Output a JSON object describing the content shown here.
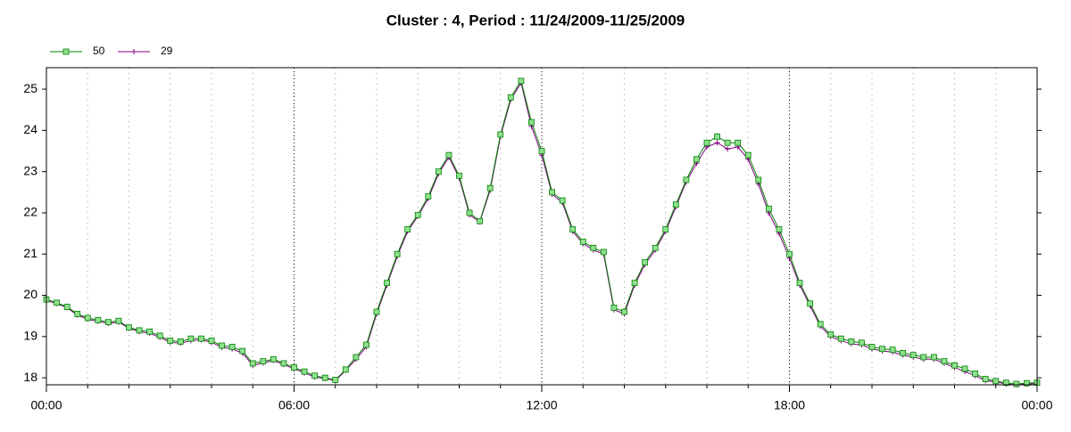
{
  "chart_data": {
    "type": "line",
    "title": "Cluster : 4, Period : 11/24/2009-11/25/2009",
    "x": [
      0,
      0.25,
      0.5,
      0.75,
      1,
      1.25,
      1.5,
      1.75,
      2,
      2.25,
      2.5,
      2.75,
      3,
      3.25,
      3.5,
      3.75,
      4,
      4.25,
      4.5,
      4.75,
      5,
      5.25,
      5.5,
      5.75,
      6,
      6.25,
      6.5,
      6.75,
      7,
      7.25,
      7.5,
      7.75,
      8,
      8.25,
      8.5,
      8.75,
      9,
      9.25,
      9.5,
      9.75,
      10,
      10.25,
      10.5,
      10.75,
      11,
      11.25,
      11.5,
      11.75,
      12,
      12.25,
      12.5,
      12.75,
      13,
      13.25,
      13.5,
      13.75,
      14,
      14.25,
      14.5,
      14.75,
      15,
      15.25,
      15.5,
      15.75,
      16,
      16.25,
      16.5,
      16.75,
      17,
      17.25,
      17.5,
      17.75,
      18,
      18.25,
      18.5,
      18.75,
      19,
      19.25,
      19.5,
      19.75,
      20,
      20.25,
      20.5,
      20.75,
      21,
      21.25,
      21.5,
      21.75,
      22,
      22.25,
      22.5,
      22.75,
      23,
      23.25,
      23.5,
      23.75,
      24
    ],
    "series": [
      {
        "name": "50",
        "color": "#008000",
        "marker_fill": "#90e090",
        "marker": "square",
        "values": [
          19.9,
          19.82,
          19.72,
          19.55,
          19.45,
          19.4,
          19.35,
          19.38,
          19.22,
          19.15,
          19.12,
          19.02,
          18.9,
          18.88,
          18.95,
          18.95,
          18.9,
          18.78,
          18.75,
          18.65,
          18.35,
          18.4,
          18.45,
          18.35,
          18.25,
          18.15,
          18.05,
          18.0,
          17.95,
          18.2,
          18.5,
          18.8,
          19.6,
          20.3,
          21.0,
          21.6,
          21.95,
          22.4,
          23.0,
          23.4,
          22.9,
          22.0,
          21.8,
          22.6,
          23.9,
          24.8,
          25.2,
          24.2,
          23.5,
          22.5,
          22.3,
          21.6,
          21.3,
          21.15,
          21.05,
          19.7,
          19.6,
          20.3,
          20.8,
          21.15,
          21.6,
          22.2,
          22.8,
          23.3,
          23.7,
          23.85,
          23.7,
          23.7,
          23.4,
          22.8,
          22.1,
          21.6,
          21.0,
          20.3,
          19.8,
          19.3,
          19.05,
          18.95,
          18.88,
          18.85,
          18.75,
          18.7,
          18.68,
          18.6,
          18.55,
          18.5,
          18.5,
          18.4,
          18.3,
          18.22,
          18.1,
          17.97,
          17.92,
          17.88,
          17.85,
          17.87,
          17.88
        ]
      },
      {
        "name": "29",
        "color": "#800080",
        "marker": "plus",
        "values": [
          19.88,
          19.8,
          19.7,
          19.52,
          19.42,
          19.37,
          19.32,
          19.35,
          19.2,
          19.12,
          19.08,
          18.98,
          18.86,
          18.84,
          18.9,
          18.92,
          18.86,
          18.74,
          18.7,
          18.6,
          18.3,
          18.36,
          18.42,
          18.32,
          18.22,
          18.12,
          18.02,
          17.98,
          17.93,
          18.18,
          18.45,
          18.75,
          19.55,
          20.25,
          20.95,
          21.55,
          21.92,
          22.35,
          22.95,
          23.35,
          22.85,
          21.95,
          21.78,
          22.55,
          23.85,
          24.75,
          25.15,
          24.1,
          23.4,
          22.45,
          22.25,
          21.55,
          21.25,
          21.1,
          21.0,
          19.65,
          19.55,
          20.25,
          20.75,
          21.1,
          21.55,
          22.15,
          22.75,
          23.2,
          23.6,
          23.7,
          23.55,
          23.6,
          23.3,
          22.7,
          22.0,
          21.5,
          20.9,
          20.25,
          19.75,
          19.25,
          19.0,
          18.9,
          18.82,
          18.8,
          18.7,
          18.65,
          18.62,
          18.55,
          18.5,
          18.45,
          18.45,
          18.35,
          18.25,
          18.15,
          18.05,
          17.93,
          17.9,
          17.85,
          17.83,
          17.85,
          17.86
        ]
      }
    ],
    "xlim": [
      0,
      24
    ],
    "xticks": [
      {
        "value": 0,
        "label": "00:00"
      },
      {
        "value": 6,
        "label": "06:00"
      },
      {
        "value": 12,
        "label": "12:00"
      },
      {
        "value": 18,
        "label": "18:00"
      },
      {
        "value": 24,
        "label": "00:00"
      }
    ],
    "minor_grid_step": 1,
    "ylim": [
      17.83,
      25.52
    ],
    "yticks": [
      18,
      19,
      20,
      21,
      22,
      23,
      24,
      25
    ],
    "grid": true,
    "legend": "top-left"
  }
}
